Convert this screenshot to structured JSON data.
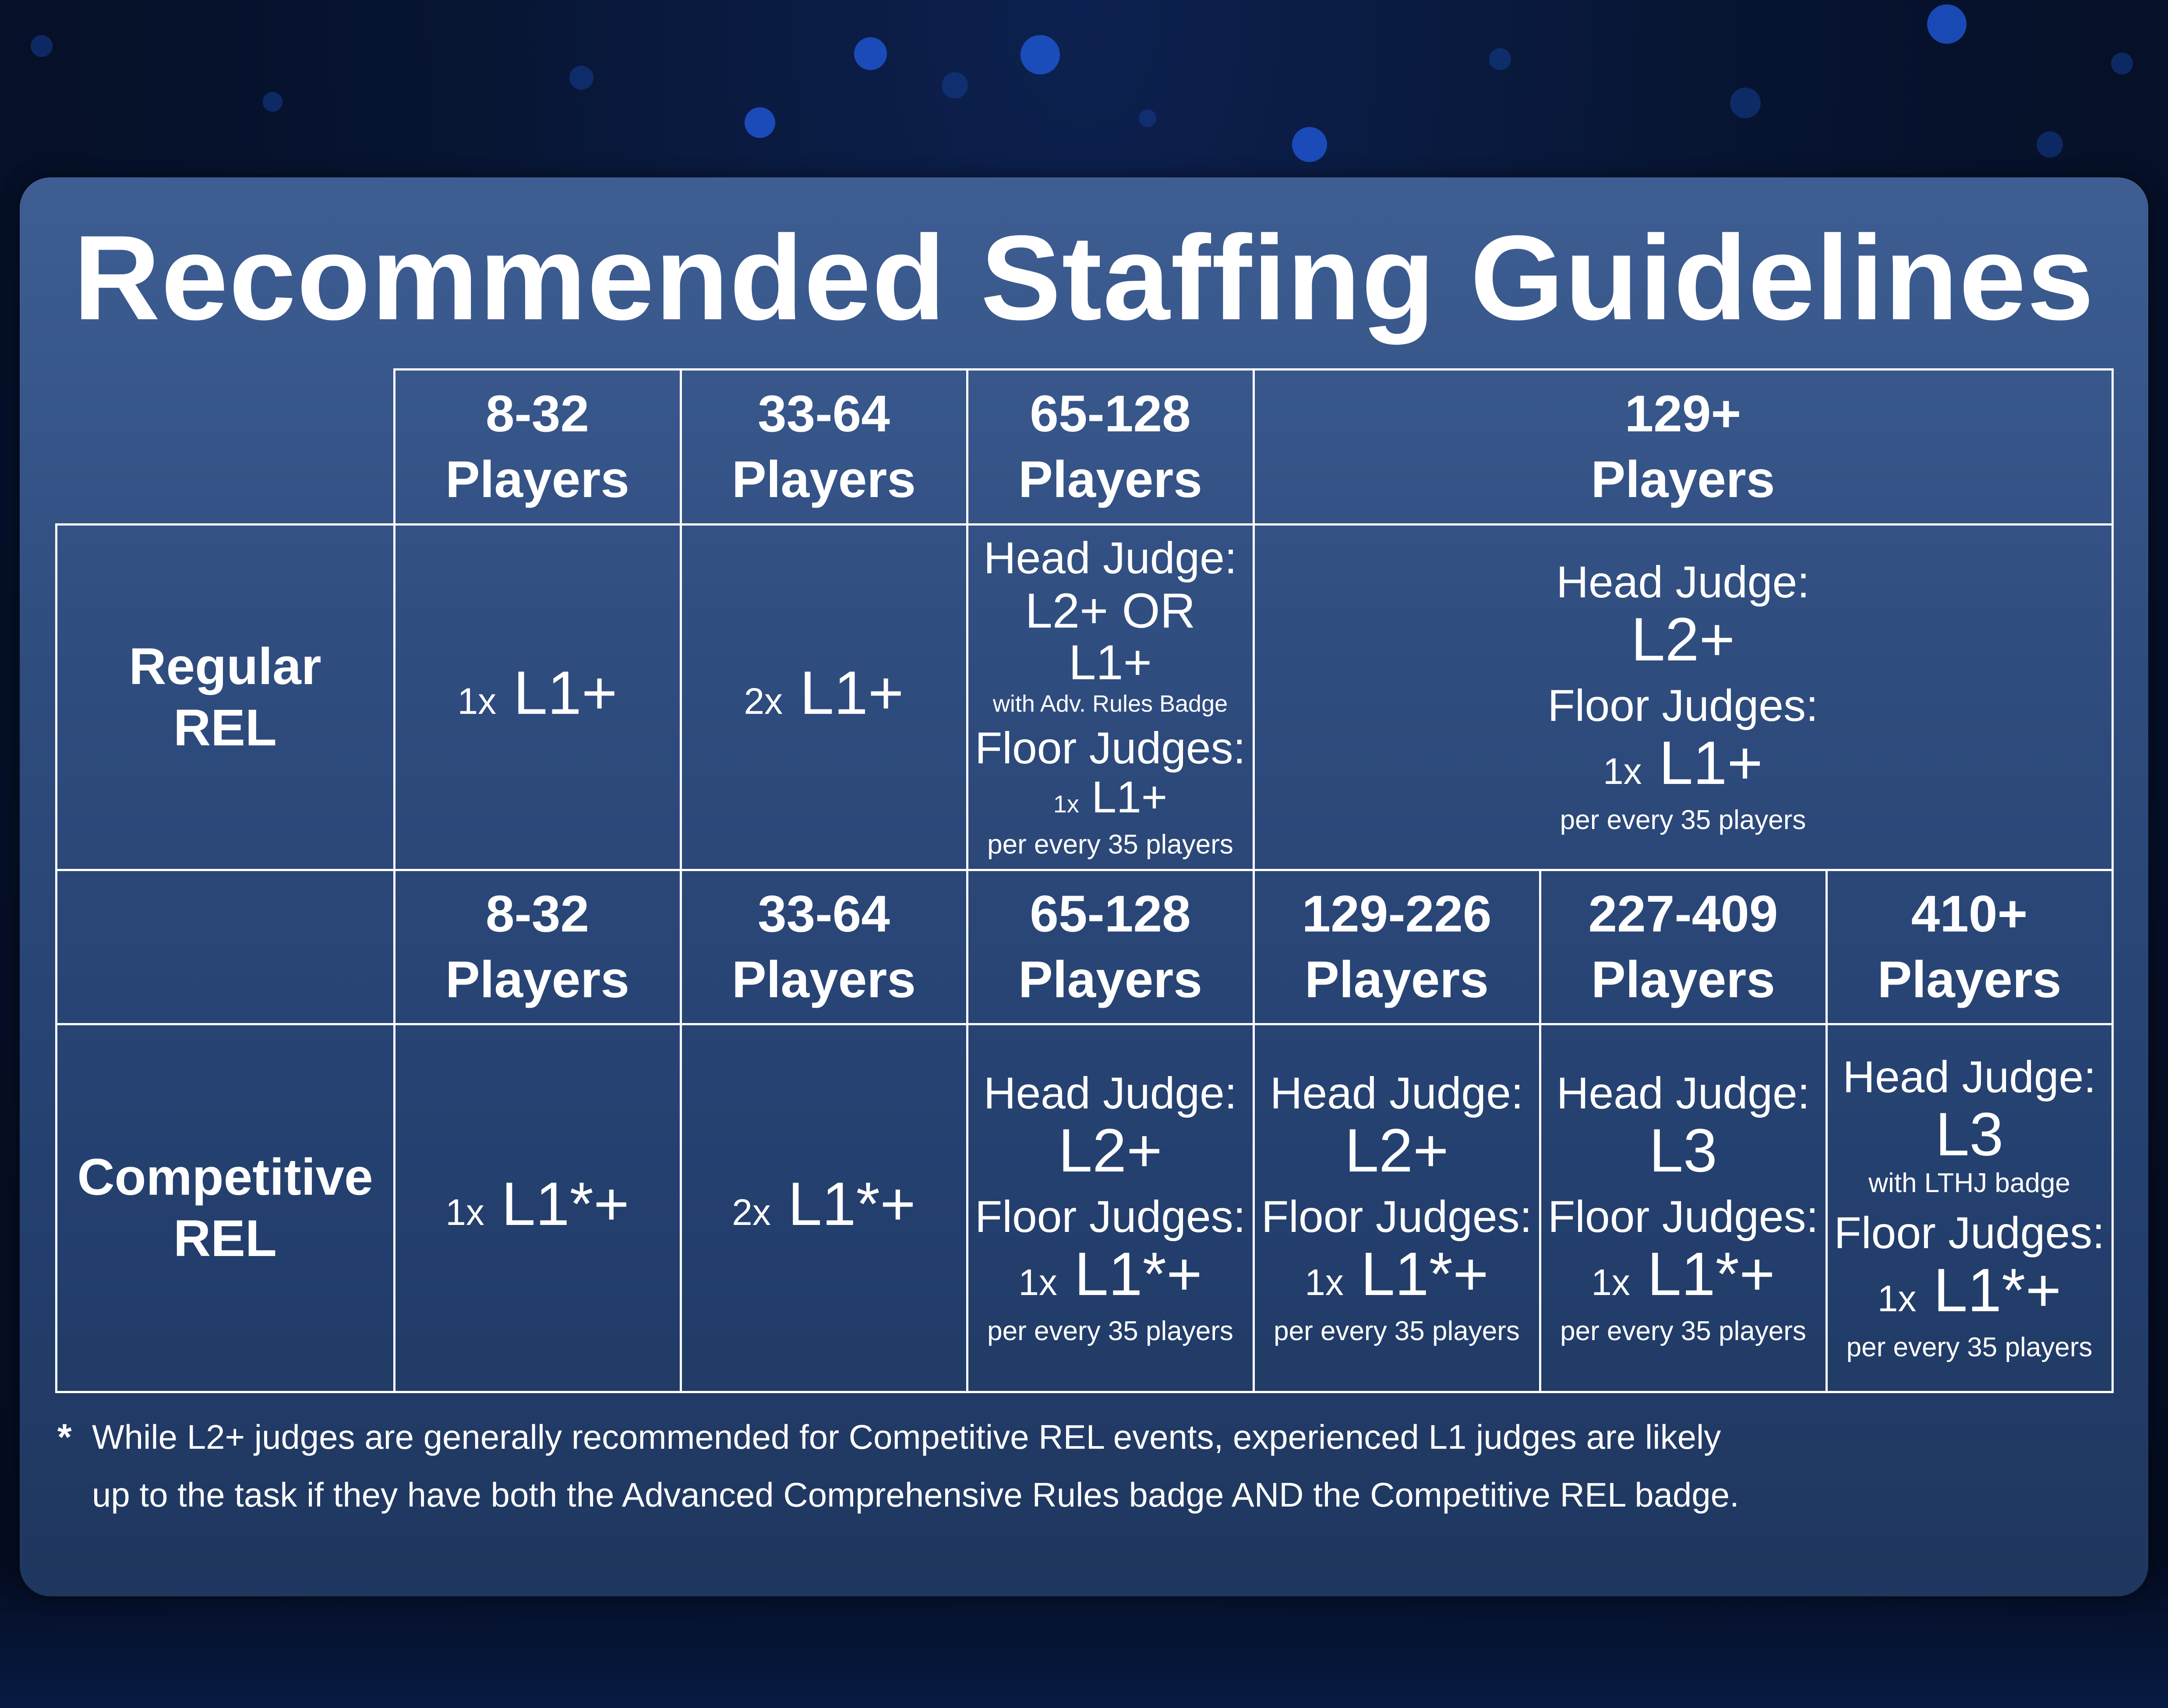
{
  "title": "Recommended Staffing Guidelines",
  "regular": {
    "label_line1": "Regular",
    "label_line2": "REL",
    "headers": [
      {
        "range": "8-32",
        "unit": "Players"
      },
      {
        "range": "33-64",
        "unit": "Players"
      },
      {
        "range": "65-128",
        "unit": "Players"
      },
      {
        "range": "129+",
        "unit": "Players"
      }
    ],
    "c1": {
      "mult": "1x",
      "level": "L1+"
    },
    "c2": {
      "mult": "2x",
      "level": "L1+"
    },
    "c3": {
      "hj_label": "Head Judge:",
      "hj_line1": "L2+ OR",
      "hj_line2": "L1+",
      "hj_note": "with Adv. Rules Badge",
      "fj_label": "Floor Judges:",
      "fj_mult": "1x",
      "fj_level": "L1+",
      "fj_note": "per every 35 players"
    },
    "c4": {
      "hj_label": "Head Judge:",
      "hj_level": "L2+",
      "fj_label": "Floor Judges:",
      "fj_mult": "1x",
      "fj_level": "L1+",
      "fj_note": "per every 35 players"
    }
  },
  "competitive": {
    "label_line1": "Competitive",
    "label_line2": "REL",
    "headers": [
      {
        "range": "8-32",
        "unit": "Players"
      },
      {
        "range": "33-64",
        "unit": "Players"
      },
      {
        "range": "65-128",
        "unit": "Players"
      },
      {
        "range": "129-226",
        "unit": "Players"
      },
      {
        "range": "227-409",
        "unit": "Players"
      },
      {
        "range": "410+",
        "unit": "Players"
      }
    ],
    "c1": {
      "mult": "1x",
      "level": "L1*+"
    },
    "c2": {
      "mult": "2x",
      "level": "L1*+"
    },
    "c3": {
      "hj_label": "Head Judge:",
      "hj_level": "L2+",
      "fj_label": "Floor Judges:",
      "fj_mult": "1x",
      "fj_level": "L1*+",
      "fj_note": "per every 35 players"
    },
    "c4": {
      "hj_label": "Head Judge:",
      "hj_level": "L2+",
      "fj_label": "Floor Judges:",
      "fj_mult": "1x",
      "fj_level": "L1*+",
      "fj_note": "per every 35 players"
    },
    "c5": {
      "hj_label": "Head Judge:",
      "hj_level": "L3",
      "fj_label": "Floor Judges:",
      "fj_mult": "1x",
      "fj_level": "L1*+",
      "fj_note": "per every 35 players"
    },
    "c6": {
      "hj_label": "Head Judge:",
      "hj_level": "L3",
      "hj_note": "with LTHJ badge",
      "fj_label": "Floor Judges:",
      "fj_mult": "1x",
      "fj_level": "L1*+",
      "fj_note": "per every 35 players"
    }
  },
  "footnote": {
    "marker": "*",
    "line1": "While L2+ judges are generally recommended for Competitive REL events, experienced L1 judges are likely",
    "line2": "up to the task if they have both the Advanced Comprehensive Rules badge AND the Competitive REL badge."
  },
  "colors": {
    "panel": "#2f4c7e",
    "text": "#ffffff",
    "background": "#071430"
  }
}
